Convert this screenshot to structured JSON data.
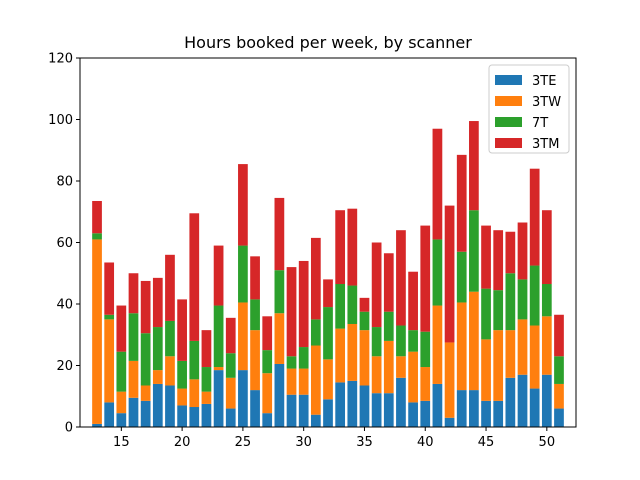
{
  "chart_data": {
    "type": "bar",
    "stacked": true,
    "title": "Hours booked per week, by scanner",
    "xlabel": "",
    "ylabel": "",
    "x": [
      13,
      14,
      15,
      16,
      17,
      18,
      19,
      20,
      21,
      22,
      23,
      24,
      25,
      26,
      27,
      28,
      29,
      30,
      31,
      32,
      33,
      34,
      35,
      36,
      37,
      38,
      39,
      40,
      41,
      42,
      43,
      44,
      45,
      46,
      47,
      48,
      49,
      50,
      51
    ],
    "xticks": [
      15,
      20,
      25,
      30,
      35,
      40,
      45,
      50
    ],
    "xlim": [
      11.6,
      52.4
    ],
    "ylim": [
      0,
      120
    ],
    "yticks": [
      0,
      20,
      40,
      60,
      80,
      100,
      120
    ],
    "legend_position": "top-right",
    "grid": false,
    "series": [
      {
        "name": "3TE",
        "color": "#1f77b4",
        "values": [
          1,
          8,
          4.5,
          9.5,
          8.5,
          14,
          13.5,
          7,
          6.5,
          7.5,
          18.5,
          6,
          18.5,
          12,
          4.5,
          20.5,
          10.5,
          10.5,
          4,
          9,
          14.5,
          15,
          13.5,
          11,
          11,
          16,
          8,
          8.5,
          14,
          3,
          12,
          12,
          8.5,
          8.5,
          16,
          17,
          12.5,
          17,
          6
        ]
      },
      {
        "name": "3TW",
        "color": "#ff7f0e",
        "values": [
          60,
          27,
          7,
          12,
          5,
          4.5,
          9.5,
          5.5,
          9,
          4,
          1,
          10,
          22,
          19.5,
          13,
          16.5,
          8.5,
          8.5,
          22.5,
          13,
          17.5,
          18.5,
          18,
          12,
          17,
          7,
          16.5,
          11,
          25.5,
          24.5,
          28.5,
          32,
          20,
          23,
          15.5,
          18,
          20.5,
          19,
          8
        ]
      },
      {
        "name": "7T",
        "color": "#2ca02c",
        "values": [
          2,
          1.5,
          13,
          15.5,
          17,
          14,
          11.5,
          9,
          12.5,
          8,
          20,
          8,
          18.5,
          10,
          7.5,
          14,
          4,
          7,
          8.5,
          17,
          14.5,
          12.5,
          6,
          9.5,
          9.5,
          10,
          7,
          11.5,
          21.5,
          0,
          16.5,
          26.5,
          16.5,
          13,
          18.5,
          13,
          19.5,
          10.5,
          9
        ]
      },
      {
        "name": "3TM",
        "color": "#d62728",
        "values": [
          10.5,
          17,
          15,
          13,
          17,
          16,
          21.5,
          20,
          41.5,
          12,
          19.5,
          11.5,
          26.5,
          14,
          11,
          23.5,
          29,
          28,
          26.5,
          9,
          24,
          25,
          4.5,
          27.5,
          19,
          31,
          19,
          34.5,
          36,
          44.5,
          31.5,
          29,
          20.5,
          19.5,
          13.5,
          18.5,
          31.5,
          24,
          13.5
        ]
      }
    ]
  }
}
